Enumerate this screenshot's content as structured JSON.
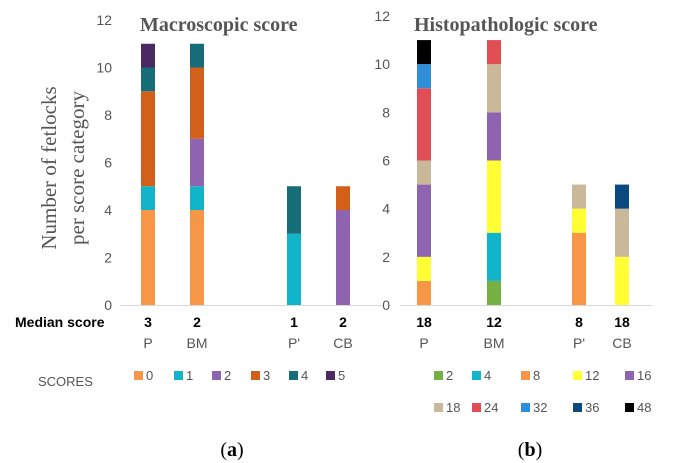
{
  "labels": {
    "median_label": "Median score",
    "scores_label": "SCORES",
    "ylabel_line1": "Number of fetlocks",
    "ylabel_line2": "per score category"
  },
  "panels": [
    {
      "open": "(",
      "letter": "a",
      "close": ")"
    },
    {
      "open": "(",
      "letter": "b",
      "close": ")"
    }
  ],
  "chart_data": [
    {
      "type": "bar",
      "stacked": true,
      "title": "Macroscopic score",
      "ylabel": "Number of fetlocks per score category",
      "ylim": [
        0,
        12
      ],
      "yticks": [
        0,
        2,
        4,
        6,
        8,
        10,
        12
      ],
      "grid": false,
      "legend_position": "bottom",
      "categories": [
        "P",
        "BM",
        "P'",
        "CB"
      ],
      "median_scores": [
        "3",
        "2",
        "1",
        "2"
      ],
      "series": [
        {
          "name": "0",
          "color": "#F79646",
          "values": [
            4,
            4,
            0,
            0
          ]
        },
        {
          "name": "1",
          "color": "#12B4C9",
          "values": [
            1,
            1,
            3,
            0
          ]
        },
        {
          "name": "2",
          "color": "#8E63B0",
          "values": [
            0,
            2,
            0,
            4
          ]
        },
        {
          "name": "3",
          "color": "#D2601A",
          "values": [
            4,
            3,
            0,
            1
          ]
        },
        {
          "name": "4",
          "color": "#166C77",
          "values": [
            1,
            1,
            2,
            0
          ]
        },
        {
          "name": "5",
          "color": "#4B2A63",
          "values": [
            1,
            0,
            0,
            0
          ]
        }
      ]
    },
    {
      "type": "bar",
      "stacked": true,
      "title": "Histopathologic score",
      "ylabel": "",
      "ylim": [
        0,
        12
      ],
      "yticks": [
        0,
        2,
        4,
        6,
        8,
        10,
        12
      ],
      "grid": false,
      "legend_position": "bottom",
      "categories": [
        "P",
        "BM",
        "P'",
        "CB"
      ],
      "median_scores": [
        "18",
        "12",
        "8",
        "18"
      ],
      "series": [
        {
          "name": "2",
          "color": "#77B042",
          "values": [
            0,
            1,
            0,
            0
          ]
        },
        {
          "name": "4",
          "color": "#12B4C9",
          "values": [
            0,
            2,
            0,
            0
          ]
        },
        {
          "name": "8",
          "color": "#F79646",
          "values": [
            1,
            0,
            3,
            0
          ]
        },
        {
          "name": "12",
          "color": "#FFFF33",
          "values": [
            1,
            3,
            1,
            2
          ]
        },
        {
          "name": "16",
          "color": "#8E63B0",
          "values": [
            3,
            2,
            0,
            0
          ]
        },
        {
          "name": "18",
          "color": "#C9B89A",
          "values": [
            1,
            2,
            1,
            2
          ]
        },
        {
          "name": "24",
          "color": "#E24E55",
          "values": [
            3,
            1,
            0,
            0
          ]
        },
        {
          "name": "32",
          "color": "#2E8FD8",
          "values": [
            1,
            0,
            0,
            0
          ]
        },
        {
          "name": "36",
          "color": "#0B4A80",
          "values": [
            0,
            0,
            0,
            1
          ]
        },
        {
          "name": "48",
          "color": "#000000",
          "values": [
            1,
            0,
            0,
            0
          ]
        }
      ]
    }
  ]
}
